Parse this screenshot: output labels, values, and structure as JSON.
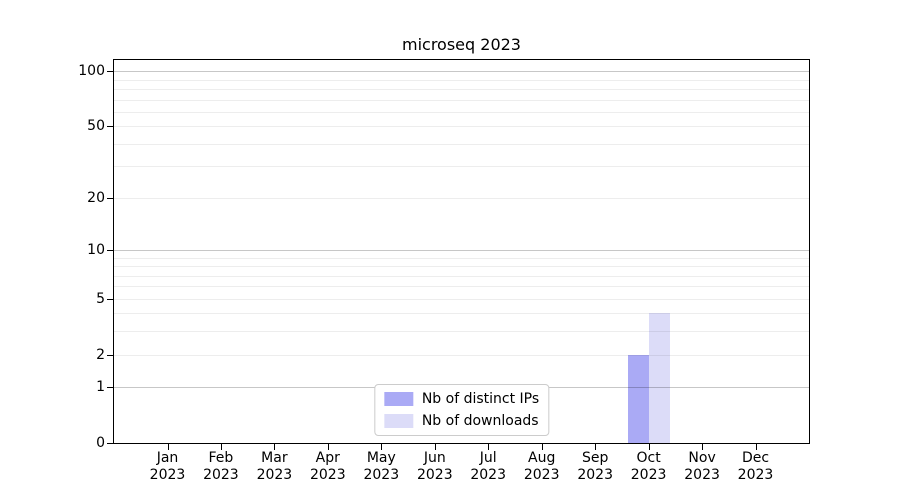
{
  "chart_data": {
    "type": "bar",
    "title": "microseq 2023",
    "categories": [
      {
        "month": "Jan",
        "year": "2023"
      },
      {
        "month": "Feb",
        "year": "2023"
      },
      {
        "month": "Mar",
        "year": "2023"
      },
      {
        "month": "Apr",
        "year": "2023"
      },
      {
        "month": "May",
        "year": "2023"
      },
      {
        "month": "Jun",
        "year": "2023"
      },
      {
        "month": "Jul",
        "year": "2023"
      },
      {
        "month": "Aug",
        "year": "2023"
      },
      {
        "month": "Sep",
        "year": "2023"
      },
      {
        "month": "Oct",
        "year": "2023"
      },
      {
        "month": "Nov",
        "year": "2023"
      },
      {
        "month": "Dec",
        "year": "2023"
      }
    ],
    "series": [
      {
        "name": "Nb of distinct IPs",
        "color": "#aaaaf5",
        "values": [
          0,
          0,
          0,
          0,
          0,
          0,
          0,
          0,
          0,
          2,
          0,
          0
        ]
      },
      {
        "name": "Nb of downloads",
        "color": "#dcdcf8",
        "values": [
          0,
          0,
          0,
          0,
          0,
          0,
          0,
          0,
          0,
          4,
          0,
          0
        ]
      }
    ],
    "xlabel": "",
    "ylabel": "",
    "yscale": "log1p",
    "ylim": [
      0,
      115
    ],
    "yticks": [
      0,
      1,
      2,
      5,
      10,
      20,
      50,
      100
    ],
    "grid": {
      "major": [
        1,
        10,
        100
      ],
      "minor": [
        2,
        3,
        4,
        5,
        6,
        7,
        8,
        9,
        20,
        30,
        40,
        50,
        60,
        70,
        80,
        90
      ]
    },
    "legend_position": "bottom-center",
    "colors": {
      "frame": "#000000",
      "major_grid": "#c8c8c8",
      "minor_grid": "#efefef",
      "background": "#ffffff"
    }
  }
}
